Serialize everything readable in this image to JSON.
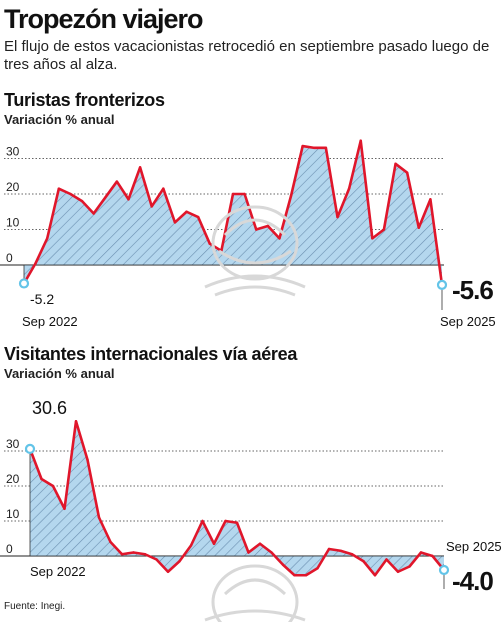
{
  "header": {
    "title": "Tropezón viajero",
    "subtitle": "El flujo de estos vacacionistas retrocedió en septiembre pasado luego de tres años al alza."
  },
  "source": "Fuente: Inegi.",
  "colors": {
    "line": "#e0162b",
    "fill": "#b4d7ee",
    "hatch": "#6b8fb0",
    "marker": "#63c4e8",
    "grid": "#333333"
  },
  "chart_data": [
    {
      "type": "area",
      "title": "Turistas fronterizos",
      "ylabel": "Variación % anual",
      "ylim": [
        -8,
        36
      ],
      "yticks": [
        0,
        10,
        20,
        30
      ],
      "grid": "dotted horizontal",
      "x_start_label": "Sep 2022",
      "x_end_label": "Sep 2025",
      "first_value_label": "-5.2",
      "last_value_label": "-5.6",
      "values": [
        -5.2,
        0.5,
        7.5,
        21.5,
        20,
        18,
        14.5,
        19,
        23.5,
        18.5,
        27.5,
        16.5,
        21.5,
        12,
        15,
        13.5,
        6,
        4,
        20,
        20,
        10,
        11,
        7.5,
        19.5,
        33.5,
        33,
        33,
        13.5,
        21.5,
        35,
        7.5,
        10,
        28.5,
        26,
        10.5,
        18.5,
        -5.6
      ]
    },
    {
      "type": "area",
      "title": "Visitantes internacionales vía aérea",
      "ylabel": "Variación % anual",
      "ylim": [
        -10,
        40
      ],
      "yticks": [
        0,
        10,
        20,
        30
      ],
      "grid": "dotted horizontal",
      "x_start_label": "Sep 2022",
      "x_end_label": "Sep 2025",
      "first_value_label": "30.6",
      "last_value_label": "-4.0",
      "values": [
        30.6,
        22,
        20,
        13.5,
        38.5,
        27.5,
        11,
        4,
        0.5,
        1,
        0.5,
        -1,
        -4.5,
        -1.5,
        3,
        10,
        3.5,
        10,
        9.5,
        1,
        3.5,
        1,
        -2.5,
        -5.5,
        -5.5,
        -3.5,
        2,
        1.5,
        0.5,
        -1.5,
        -5.5,
        -1,
        -4.5,
        -3,
        1,
        0,
        -4.0
      ]
    }
  ]
}
